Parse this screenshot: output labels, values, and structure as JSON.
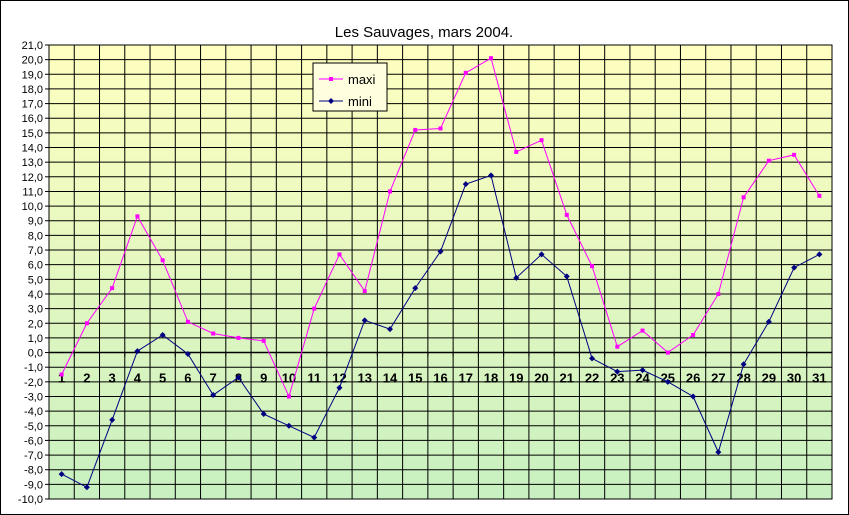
{
  "chart_data": {
    "type": "line",
    "title": "Les Sauvages, mars 2004.",
    "xlabel": "",
    "ylabel": "",
    "categories": [
      "1",
      "2",
      "3",
      "4",
      "5",
      "6",
      "7",
      "8",
      "9",
      "10",
      "11",
      "12",
      "13",
      "14",
      "15",
      "16",
      "17",
      "18",
      "19",
      "20",
      "21",
      "22",
      "23",
      "24",
      "25",
      "26",
      "27",
      "28",
      "29",
      "30",
      "31"
    ],
    "ylim": [
      -10,
      21
    ],
    "ytick_step": 1,
    "ytick_labels": [
      "-10,0",
      "-9,0",
      "-8,0",
      "-7,0",
      "-6,0",
      "-5,0",
      "-4,0",
      "-3,0",
      "-2,0",
      "-1,0",
      "0,0",
      "1,0",
      "2,0",
      "3,0",
      "4,0",
      "5,0",
      "6,0",
      "7,0",
      "8,0",
      "9,0",
      "10,0",
      "11,0",
      "12,0",
      "13,0",
      "14,0",
      "15,0",
      "16,0",
      "17,0",
      "18,0",
      "19,0",
      "20,0",
      "21,0"
    ],
    "grid": true,
    "legend_position": "top-center",
    "background_gradient": [
      "#ffffc0",
      "#c8f0c0"
    ],
    "series": [
      {
        "name": "maxi",
        "color": "#ff00ff",
        "marker": "square",
        "values": [
          -1.5,
          2.0,
          4.4,
          9.3,
          6.3,
          2.1,
          1.3,
          1.0,
          0.8,
          -3.0,
          3.0,
          6.7,
          4.2,
          11.0,
          15.2,
          15.3,
          19.1,
          20.1,
          13.7,
          14.5,
          9.4,
          5.9,
          0.4,
          1.5,
          0.0,
          1.2,
          4.0,
          10.6,
          13.1,
          13.5,
          10.7
        ]
      },
      {
        "name": "mini",
        "color": "#000080",
        "marker": "diamond",
        "values": [
          -8.3,
          -9.2,
          -4.6,
          0.1,
          1.2,
          -0.1,
          -2.9,
          -1.7,
          -4.2,
          -5.0,
          -5.8,
          -2.4,
          2.2,
          1.6,
          4.4,
          6.9,
          11.5,
          12.1,
          5.1,
          6.7,
          5.2,
          -0.4,
          -1.3,
          -1.2,
          -2.0,
          -3.0,
          -6.8,
          -0.8,
          2.1,
          5.8,
          6.7
        ]
      }
    ]
  }
}
